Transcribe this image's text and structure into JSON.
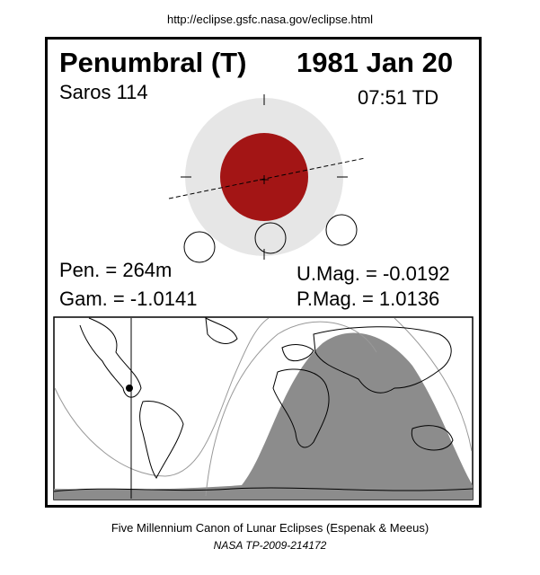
{
  "header": {
    "url": "http://eclipse.gsfc.nasa.gov/eclipse.html"
  },
  "eclipse": {
    "type_label": "Penumbral (T)",
    "date": "1981 Jan 20",
    "saros": "Saros 114",
    "time": "07:51 TD",
    "pen_duration": "Pen. = 264m",
    "gamma": "Gam. = -1.0141",
    "umbral_magnitude": "U.Mag. = -0.0192",
    "penumbral_magnitude": "P.Mag. = 1.0136"
  },
  "colors": {
    "penumbra": "#e6e6e6",
    "moon": "#a31515",
    "visibility_shade": "#8c8c8c",
    "frame": "#000000"
  },
  "footer": {
    "canon": "Five Millennium Canon of Lunar Eclipses (Espenak & Meeus)",
    "publication": "NASA TP-2009-214172"
  }
}
